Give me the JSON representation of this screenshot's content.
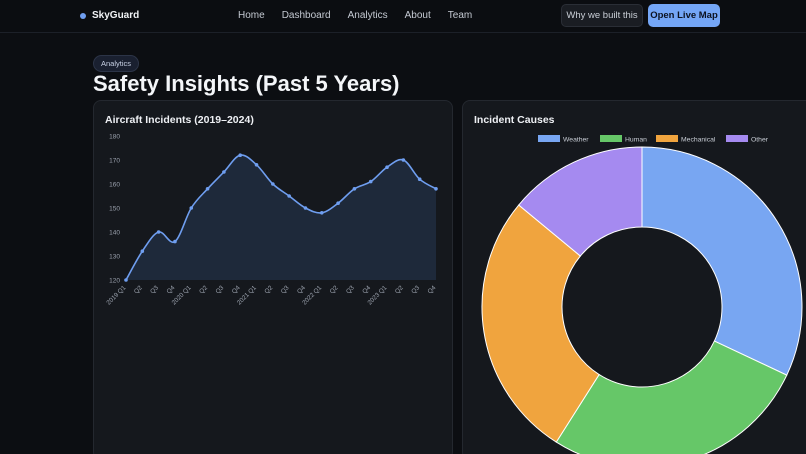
{
  "nav": {
    "brand": "SkyGuard",
    "links": [
      "Home",
      "Dashboard",
      "Analytics",
      "About",
      "Team"
    ],
    "why_label": "Why we built this",
    "cta_label": "Open Live Map"
  },
  "hero": {
    "badge": "Analytics",
    "title": "Safety Insights (Past 5 Years)"
  },
  "colors": {
    "accent": "#74a6f6",
    "weather": "#78a6f2",
    "human": "#66c768",
    "mechanical": "#f0a43e",
    "other": "#a58af0"
  },
  "chart_data": [
    {
      "type": "line",
      "title": "Aircraft Incidents (2019–2024)",
      "categories": [
        "2019 Q1",
        "Q2",
        "Q3",
        "Q4",
        "2020 Q1",
        "Q2",
        "Q3",
        "Q4",
        "2021 Q1",
        "Q2",
        "Q3",
        "Q4",
        "2022 Q1",
        "Q2",
        "Q3",
        "Q4",
        "2023 Q1",
        "Q2",
        "Q3",
        "Q4"
      ],
      "x_positions": [
        0,
        1,
        2,
        3,
        4,
        5,
        6,
        7,
        8,
        9,
        10,
        11,
        12,
        13,
        14,
        15,
        16,
        17,
        18,
        19,
        20,
        21
      ],
      "values": [
        120,
        132,
        140,
        136,
        150,
        158,
        165,
        172,
        168,
        160,
        155,
        150,
        148,
        152,
        158,
        161,
        167,
        170,
        162,
        158
      ],
      "point_x": [
        0,
        1,
        2,
        3,
        4,
        5,
        6,
        7,
        8,
        9,
        10,
        11,
        12,
        13,
        14,
        15,
        16,
        17,
        18,
        19
      ],
      "ylim": [
        120,
        180
      ],
      "yticks": [
        120,
        130,
        140,
        150,
        160,
        170,
        180
      ],
      "area_fill": true
    },
    {
      "type": "pie",
      "title": "Incident Causes",
      "labels": [
        "Weather",
        "Human",
        "Mechanical",
        "Other"
      ],
      "values": [
        32,
        27,
        27,
        14
      ],
      "donut": true,
      "legend": "top"
    }
  ]
}
